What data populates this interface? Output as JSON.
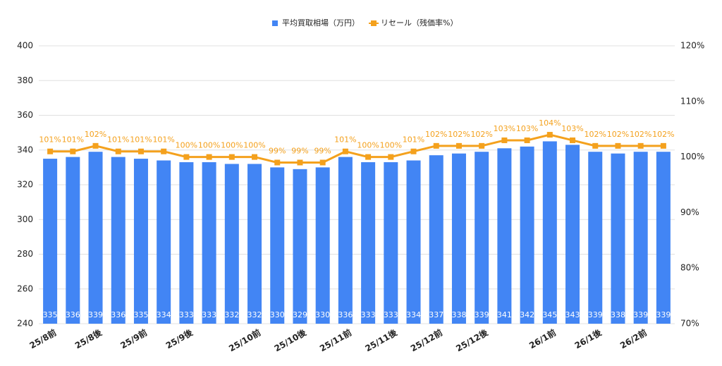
{
  "chart_data": {
    "type": "bar-line",
    "categories": [
      "25/8前",
      "",
      "25/8後",
      "",
      "25/9前",
      "",
      "25/9後",
      "",
      "",
      "25/10前",
      "",
      "25/10後",
      "",
      "25/11前",
      "",
      "25/11後",
      "",
      "25/12前",
      "",
      "25/12後",
      "",
      "",
      "26/1前",
      "",
      "26/1後",
      "",
      "26/2前",
      ""
    ],
    "series": [
      {
        "name": "平均買取相場（万円）",
        "color": "#4285f4",
        "type": "bar",
        "values": [
          335,
          336,
          339,
          336,
          335,
          334,
          333,
          333,
          332,
          332,
          330,
          329,
          330,
          336,
          333,
          333,
          334,
          337,
          338,
          339,
          341,
          342,
          345,
          343,
          339,
          338,
          339,
          339
        ]
      },
      {
        "name": "リセール（残価率%）",
        "color": "#f4a11d",
        "type": "line",
        "axis": "y2",
        "values": [
          101,
          101,
          102,
          101,
          101,
          101,
          100,
          100,
          100,
          100,
          99,
          99,
          99,
          101,
          100,
          100,
          101,
          102,
          102,
          102,
          103,
          103,
          104,
          103,
          102,
          102,
          102,
          102
        ],
        "value_labels": [
          "101%",
          "101%",
          "102%",
          "101%",
          "101%",
          "101%",
          "100%",
          "100%",
          "100%",
          "100%",
          "99%",
          "99%",
          "99%",
          "101%",
          "100%",
          "100%",
          "101%",
          "102%",
          "102%",
          "102%",
          "103%",
          "103%",
          "104%",
          "103%",
          "102%",
          "102%",
          "102%",
          "102%"
        ]
      }
    ],
    "ylim": [
      240,
      400
    ],
    "yticks": [
      240,
      260,
      280,
      300,
      320,
      340,
      360,
      380,
      400
    ],
    "y2lim": [
      70,
      120
    ],
    "y2ticks": [
      {
        "value": 70,
        "label": "70%"
      },
      {
        "value": 80,
        "label": "80%"
      },
      {
        "value": 90,
        "label": "90%"
      },
      {
        "value": 100,
        "label": "100%"
      },
      {
        "value": 110,
        "label": "110%"
      },
      {
        "value": 120,
        "label": "120%"
      }
    ],
    "grid": true,
    "legend": "top"
  }
}
